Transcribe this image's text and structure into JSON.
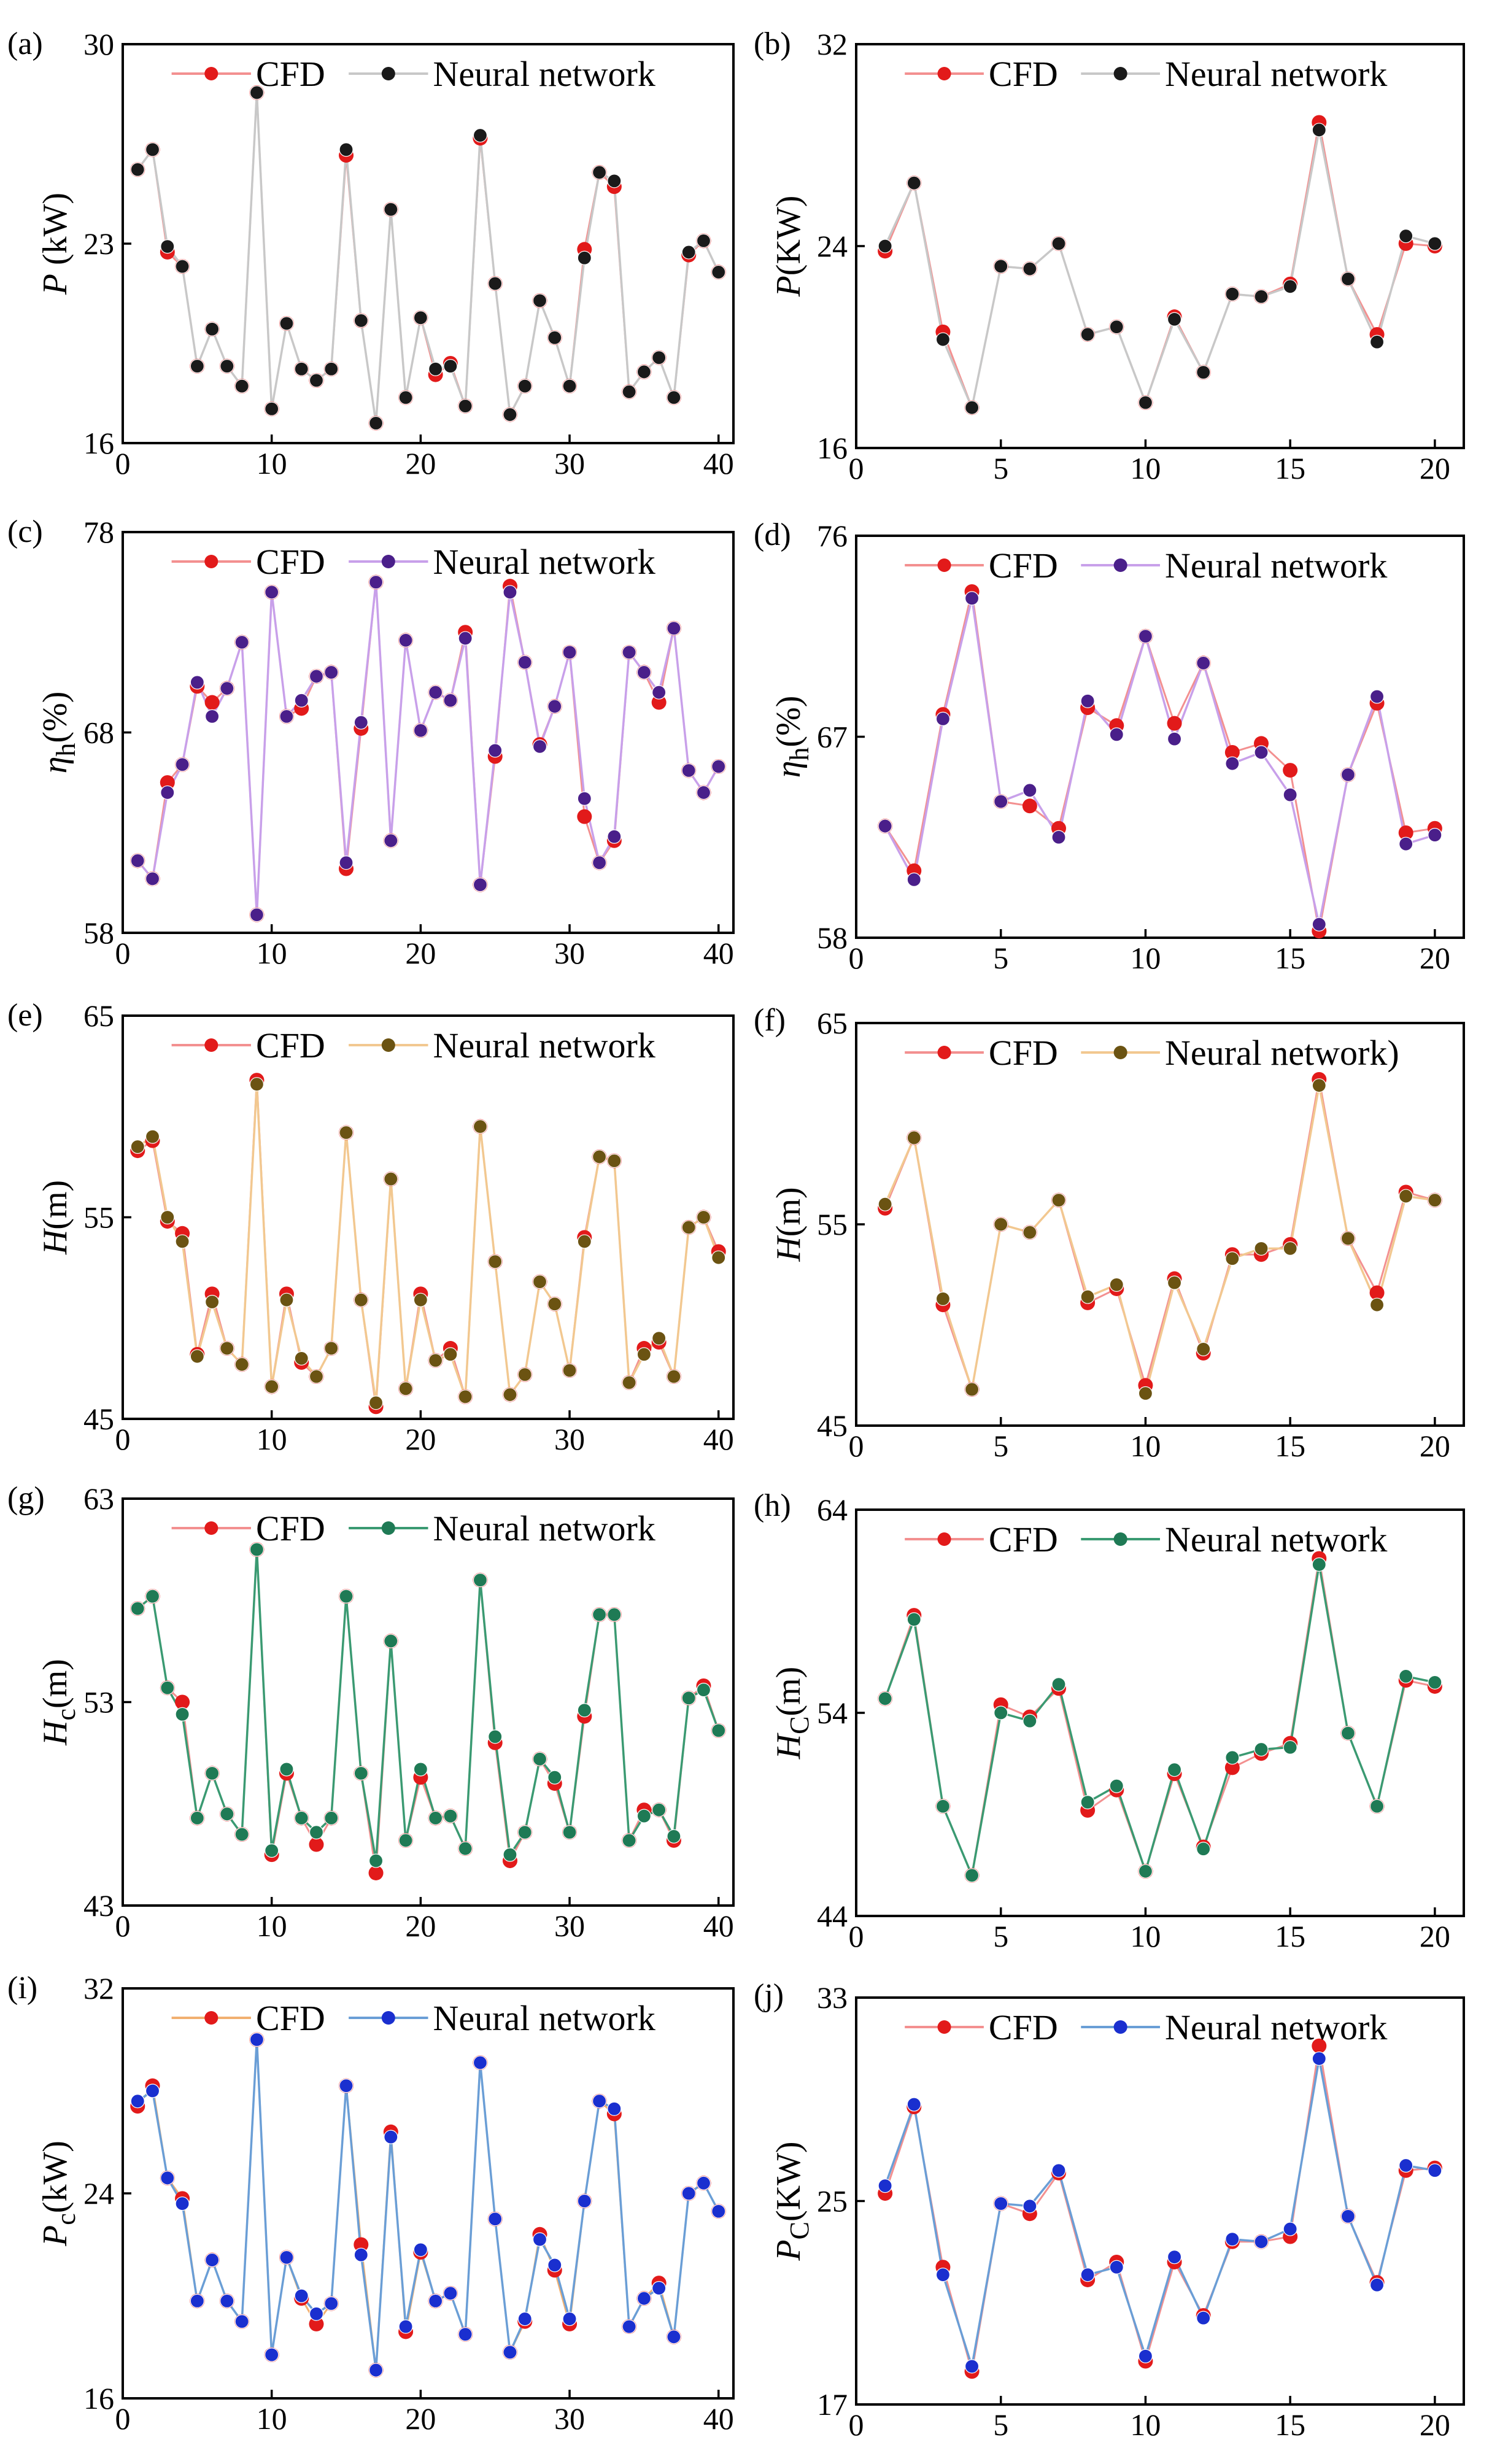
{
  "chart_data": [
    {
      "id": "a",
      "type": "line",
      "panel_label": "(a)",
      "ylabel_main": "P",
      "ylabel_italic": true,
      "ylabel_sub": "",
      "ylabel_suffix": " (kW)",
      "xlim": [
        0,
        41
      ],
      "ylim": [
        16,
        30
      ],
      "xticks": [
        0,
        10,
        20,
        30,
        40
      ],
      "yticks": [
        16,
        23,
        30
      ],
      "legend": [
        "CFD",
        "Neural network"
      ],
      "nn_color": "#c8c8c8",
      "nn_marker": "#1a1a1a",
      "cfd_line": "#f39090",
      "cfd_marker": "#e21a1a",
      "series": [
        {
          "name": "CFD",
          "values": [
            25.6,
            26.3,
            22.7,
            22.2,
            18.7,
            20.0,
            18.7,
            18.0,
            28.3,
            17.2,
            20.2,
            18.6,
            18.2,
            18.6,
            26.1,
            20.3,
            16.7,
            24.2,
            17.6,
            20.4,
            18.4,
            18.8,
            17.3,
            26.7,
            21.6,
            17.0,
            18.0,
            21.0,
            19.7,
            18.0,
            22.8,
            25.5,
            25.0,
            17.8,
            18.5,
            19.0,
            17.6,
            22.6,
            23.1,
            22.0
          ]
        },
        {
          "name": "Neural network",
          "values": [
            25.6,
            26.3,
            22.9,
            22.2,
            18.7,
            20.0,
            18.7,
            18.0,
            28.3,
            17.2,
            20.2,
            18.6,
            18.2,
            18.6,
            26.3,
            20.3,
            16.7,
            24.2,
            17.6,
            20.4,
            18.6,
            18.7,
            17.3,
            26.8,
            21.6,
            17.0,
            18.0,
            21.0,
            19.7,
            18.0,
            22.5,
            25.5,
            25.2,
            17.8,
            18.5,
            19.0,
            17.6,
            22.7,
            23.1,
            22.0
          ]
        }
      ]
    },
    {
      "id": "b",
      "type": "line",
      "panel_label": "(b)",
      "ylabel_main": "P",
      "ylabel_italic": true,
      "ylabel_sub": "",
      "ylabel_suffix": "(KW)",
      "xlim": [
        0,
        21
      ],
      "ylim": [
        16,
        32
      ],
      "xticks": [
        0,
        5,
        10,
        15,
        20
      ],
      "yticks": [
        16,
        24,
        32
      ],
      "legend": [
        "CFD",
        "Neural network"
      ],
      "nn_color": "#c8c8c8",
      "nn_marker": "#1a1a1a",
      "cfd_line": "#f39090",
      "cfd_marker": "#e21a1a",
      "series": [
        {
          "name": "CFD",
          "values": [
            23.8,
            26.5,
            20.6,
            17.6,
            23.2,
            23.1,
            24.1,
            20.5,
            20.8,
            17.8,
            21.2,
            19.0,
            22.1,
            22.0,
            22.5,
            28.9,
            22.7,
            20.5,
            24.1,
            24.0
          ]
        },
        {
          "name": "Neural network",
          "values": [
            24.0,
            26.5,
            20.3,
            17.6,
            23.2,
            23.1,
            24.1,
            20.5,
            20.8,
            17.8,
            21.1,
            19.0,
            22.1,
            22.0,
            22.4,
            28.6,
            22.7,
            20.2,
            24.4,
            24.1
          ]
        }
      ]
    },
    {
      "id": "c",
      "type": "line",
      "panel_label": "(c)",
      "ylabel_main": "η",
      "ylabel_italic": true,
      "ylabel_sub": "h",
      "ylabel_suffix": "(%)",
      "xlim": [
        0,
        41
      ],
      "ylim": [
        58,
        78
      ],
      "xticks": [
        0,
        10,
        20,
        30,
        40
      ],
      "yticks": [
        58,
        68,
        78
      ],
      "legend": [
        "CFD",
        "Neural network"
      ],
      "nn_color": "#c8a0ea",
      "nn_marker": "#4a1f8a",
      "cfd_line": "#f39090",
      "cfd_marker": "#e21a1a",
      "series": [
        {
          "name": "CFD",
          "values": [
            61.6,
            60.7,
            65.5,
            66.4,
            70.3,
            69.5,
            70.2,
            72.5,
            58.9,
            75.0,
            68.8,
            69.2,
            70.8,
            71.0,
            61.2,
            68.2,
            75.5,
            62.6,
            72.6,
            68.1,
            70.0,
            69.6,
            73.0,
            60.4,
            66.8,
            75.3,
            71.5,
            67.4,
            69.3,
            72.0,
            63.8,
            61.5,
            62.6,
            72.0,
            71.0,
            69.5,
            73.2,
            66.1,
            65.0,
            66.3
          ]
        },
        {
          "name": "Neural network",
          "values": [
            61.6,
            60.7,
            65.0,
            66.4,
            70.5,
            68.8,
            70.2,
            72.5,
            58.9,
            75.0,
            68.8,
            69.6,
            70.8,
            71.0,
            61.5,
            68.5,
            75.5,
            62.6,
            72.6,
            68.1,
            70.0,
            69.6,
            72.7,
            60.4,
            67.1,
            75.0,
            71.5,
            67.3,
            69.3,
            72.0,
            64.7,
            61.5,
            62.8,
            72.0,
            71.0,
            70.0,
            73.2,
            66.1,
            65.0,
            66.3
          ]
        }
      ]
    },
    {
      "id": "d",
      "type": "line",
      "panel_label": "(d)",
      "ylabel_main": "η",
      "ylabel_italic": true,
      "ylabel_sub": "h",
      "ylabel_suffix": "(%)",
      "xlim": [
        0,
        21
      ],
      "ylim": [
        58,
        76
      ],
      "xticks": [
        0,
        5,
        10,
        15,
        20
      ],
      "yticks": [
        58,
        67,
        76
      ],
      "legend": [
        "CFD",
        "Neural network"
      ],
      "nn_color": "#c8a0ea",
      "nn_marker": "#4a1f8a",
      "cfd_line": "#f39090",
      "cfd_marker": "#e21a1a",
      "series": [
        {
          "name": "CFD",
          "values": [
            63.0,
            61.0,
            68.0,
            73.5,
            64.1,
            63.9,
            62.9,
            68.3,
            67.5,
            71.5,
            67.6,
            70.3,
            66.3,
            66.7,
            65.5,
            58.3,
            65.3,
            68.5,
            62.7,
            62.9
          ]
        },
        {
          "name": "Neural network",
          "values": [
            63.0,
            60.6,
            67.8,
            73.2,
            64.1,
            64.6,
            62.5,
            68.6,
            67.1,
            71.5,
            66.9,
            70.3,
            65.8,
            66.3,
            64.4,
            58.6,
            65.3,
            68.8,
            62.2,
            62.6
          ]
        }
      ]
    },
    {
      "id": "e",
      "type": "line",
      "panel_label": "(e)",
      "ylabel_main": "H",
      "ylabel_italic": true,
      "ylabel_sub": "",
      "ylabel_suffix": "(m)",
      "xlim": [
        0,
        41
      ],
      "ylim": [
        45,
        65
      ],
      "xticks": [
        0,
        10,
        20,
        30,
        40
      ],
      "yticks": [
        45,
        55,
        65
      ],
      "legend": [
        "CFD",
        "Neural network"
      ],
      "nn_color": "#f2c890",
      "nn_marker": "#6b5312",
      "cfd_line": "#f39090",
      "cfd_marker": "#e21a1a",
      "series": [
        {
          "name": "CFD",
          "values": [
            58.3,
            58.8,
            54.8,
            54.2,
            48.2,
            51.2,
            48.5,
            47.7,
            61.8,
            46.6,
            51.2,
            47.8,
            47.1,
            48.5,
            59.2,
            50.9,
            45.6,
            56.9,
            46.5,
            51.2,
            47.9,
            48.5,
            46.1,
            59.5,
            52.8,
            46.2,
            47.2,
            51.8,
            50.7,
            47.4,
            54.0,
            58.0,
            57.8,
            46.8,
            48.5,
            48.8,
            47.1,
            54.5,
            55.0,
            53.3
          ]
        },
        {
          "name": "Neural network",
          "values": [
            58.5,
            59.0,
            55.0,
            53.8,
            48.1,
            50.8,
            48.5,
            47.7,
            61.6,
            46.6,
            50.9,
            48.0,
            47.1,
            48.5,
            59.2,
            50.9,
            45.8,
            56.9,
            46.5,
            50.9,
            47.9,
            48.2,
            46.1,
            59.5,
            52.8,
            46.2,
            47.2,
            51.8,
            50.7,
            47.4,
            53.8,
            58.0,
            57.8,
            46.8,
            48.2,
            49.0,
            47.1,
            54.5,
            55.0,
            53.0
          ]
        }
      ]
    },
    {
      "id": "f",
      "type": "line",
      "panel_label": "(f)",
      "ylabel_main": "H",
      "ylabel_italic": true,
      "ylabel_sub": "",
      "ylabel_suffix": "(m)",
      "xlim": [
        0,
        21
      ],
      "ylim": [
        45,
        65
      ],
      "xticks": [
        0,
        5,
        10,
        15,
        20
      ],
      "yticks": [
        45,
        55,
        65
      ],
      "legend": [
        "CFD",
        "Neural network)"
      ],
      "nn_color": "#f2c890",
      "nn_marker": "#6b5312",
      "cfd_line": "#f39090",
      "cfd_marker": "#e21a1a",
      "series": [
        {
          "name": "CFD",
          "values": [
            55.8,
            59.3,
            51.0,
            46.8,
            55.0,
            54.6,
            56.2,
            51.1,
            51.8,
            47.0,
            52.3,
            48.6,
            53.5,
            53.5,
            54.0,
            62.2,
            54.3,
            51.6,
            56.6,
            56.2
          ]
        },
        {
          "name": "Neural network",
          "values": [
            56.0,
            59.3,
            51.3,
            46.8,
            55.0,
            54.6,
            56.2,
            51.4,
            52.0,
            46.6,
            52.1,
            48.8,
            53.3,
            53.8,
            53.8,
            61.9,
            54.3,
            51.0,
            56.4,
            56.2
          ]
        }
      ]
    },
    {
      "id": "g",
      "type": "line",
      "panel_label": "(g)",
      "ylabel_main": "H",
      "ylabel_italic": true,
      "ylabel_sub": "c",
      "ylabel_suffix": "(m)",
      "xlim": [
        0,
        41
      ],
      "ylim": [
        43,
        63
      ],
      "xticks": [
        0,
        10,
        20,
        30,
        40
      ],
      "yticks": [
        43,
        53,
        63
      ],
      "legend": [
        "CFD",
        "Neural network"
      ],
      "nn_color": "#3a9a72",
      "nn_marker": "#1f7a55",
      "cfd_line": "#f39090",
      "cfd_marker": "#e21a1a",
      "series": [
        {
          "name": "CFD",
          "values": [
            57.6,
            58.2,
            53.7,
            53.0,
            47.3,
            49.5,
            47.5,
            46.5,
            60.5,
            45.5,
            49.5,
            47.3,
            46.0,
            47.3,
            58.2,
            49.5,
            44.6,
            56.0,
            46.2,
            49.3,
            47.3,
            47.4,
            45.8,
            59.0,
            51.0,
            45.2,
            46.6,
            50.2,
            49.0,
            46.6,
            52.3,
            57.3,
            57.3,
            46.2,
            47.7,
            47.7,
            46.2,
            53.2,
            53.8,
            51.6
          ]
        },
        {
          "name": "Neural network",
          "values": [
            57.6,
            58.2,
            53.7,
            52.4,
            47.3,
            49.5,
            47.5,
            46.5,
            60.5,
            45.7,
            49.7,
            47.3,
            46.6,
            47.3,
            58.2,
            49.5,
            45.2,
            56.0,
            46.2,
            49.7,
            47.3,
            47.4,
            45.8,
            59.0,
            51.3,
            45.5,
            46.6,
            50.2,
            49.3,
            46.6,
            52.6,
            57.3,
            57.3,
            46.2,
            47.4,
            47.7,
            46.4,
            53.2,
            53.6,
            51.6
          ]
        }
      ]
    },
    {
      "id": "h",
      "type": "line",
      "panel_label": "(h)",
      "ylabel_main": "H",
      "ylabel_italic": true,
      "ylabel_sub": "C",
      "ylabel_suffix": "(m)",
      "xlim": [
        0,
        21
      ],
      "ylim": [
        44,
        64
      ],
      "xticks": [
        0,
        5,
        10,
        15,
        20
      ],
      "yticks": [
        44,
        54,
        64
      ],
      "legend": [
        "CFD",
        "Neural network"
      ],
      "nn_color": "#3a9a72",
      "nn_marker": "#1f7a55",
      "cfd_line": "#f39090",
      "cfd_marker": "#e21a1a",
      "series": [
        {
          "name": "CFD",
          "values": [
            54.7,
            58.8,
            49.4,
            46.0,
            54.4,
            53.8,
            55.2,
            49.2,
            50.2,
            46.2,
            51.0,
            47.4,
            51.3,
            52.0,
            52.5,
            61.6,
            53.0,
            49.4,
            55.6,
            55.3
          ]
        },
        {
          "name": "Neural network",
          "values": [
            54.7,
            58.6,
            49.4,
            46.0,
            54.0,
            53.6,
            55.4,
            49.6,
            50.4,
            46.2,
            51.2,
            47.3,
            51.8,
            52.2,
            52.3,
            61.3,
            53.0,
            49.4,
            55.8,
            55.5
          ]
        }
      ]
    },
    {
      "id": "i",
      "type": "line",
      "panel_label": "(i)",
      "ylabel_main": "P",
      "ylabel_italic": true,
      "ylabel_sub": "c",
      "ylabel_suffix": "(kW)",
      "xlim": [
        0,
        41
      ],
      "ylim": [
        16,
        32
      ],
      "xticks": [
        0,
        10,
        20,
        30,
        40
      ],
      "yticks": [
        16,
        24,
        32
      ],
      "legend": [
        "CFD",
        "Neural network"
      ],
      "nn_color": "#6a9ed6",
      "nn_marker": "#1a2fcf",
      "cfd_line": "#f2b070",
      "cfd_marker": "#e21a1a",
      "series": [
        {
          "name": "CFD",
          "values": [
            27.4,
            28.2,
            24.6,
            23.8,
            19.8,
            21.4,
            19.8,
            19.0,
            30.0,
            17.7,
            21.5,
            19.9,
            18.9,
            19.7,
            28.2,
            22.0,
            17.1,
            26.4,
            18.6,
            21.7,
            19.8,
            20.1,
            18.5,
            29.1,
            23.0,
            17.8,
            19.0,
            22.4,
            21.0,
            18.9,
            23.7,
            27.6,
            27.1,
            18.8,
            19.9,
            20.5,
            18.4,
            24.0,
            24.4,
            23.3
          ]
        },
        {
          "name": "Neural network",
          "values": [
            27.6,
            28.0,
            24.6,
            23.6,
            19.8,
            21.4,
            19.8,
            19.0,
            30.0,
            17.7,
            21.5,
            20.0,
            19.3,
            19.7,
            28.2,
            21.6,
            17.1,
            26.2,
            18.8,
            21.8,
            19.8,
            20.1,
            18.5,
            29.1,
            23.0,
            17.8,
            19.1,
            22.2,
            21.2,
            19.1,
            23.7,
            27.6,
            27.3,
            18.8,
            19.9,
            20.3,
            18.4,
            24.0,
            24.4,
            23.3
          ]
        }
      ]
    },
    {
      "id": "j",
      "type": "line",
      "panel_label": "(j)",
      "ylabel_main": "P",
      "ylabel_italic": true,
      "ylabel_sub": "C",
      "ylabel_suffix": "(KW)",
      "xlim": [
        0,
        21
      ],
      "ylim": [
        17,
        33
      ],
      "xticks": [
        0,
        5,
        10,
        15,
        20
      ],
      "yticks": [
        17,
        25,
        33
      ],
      "legend": [
        "CFD",
        "Neural network"
      ],
      "nn_color": "#6a9ed6",
      "nn_marker": "#1a2fcf",
      "cfd_line": "#f39090",
      "cfd_marker": "#e21a1a",
      "series": [
        {
          "name": "CFD",
          "values": [
            25.3,
            28.7,
            22.4,
            18.3,
            24.9,
            24.5,
            26.1,
            21.9,
            22.6,
            18.7,
            22.6,
            20.5,
            23.4,
            23.4,
            23.6,
            31.1,
            24.4,
            21.8,
            26.2,
            26.3
          ]
        },
        {
          "name": "Neural network",
          "values": [
            25.6,
            28.8,
            22.1,
            18.5,
            24.9,
            24.8,
            26.2,
            22.1,
            22.4,
            18.9,
            22.8,
            20.4,
            23.5,
            23.4,
            23.9,
            30.6,
            24.4,
            21.7,
            26.4,
            26.2
          ]
        }
      ]
    }
  ]
}
